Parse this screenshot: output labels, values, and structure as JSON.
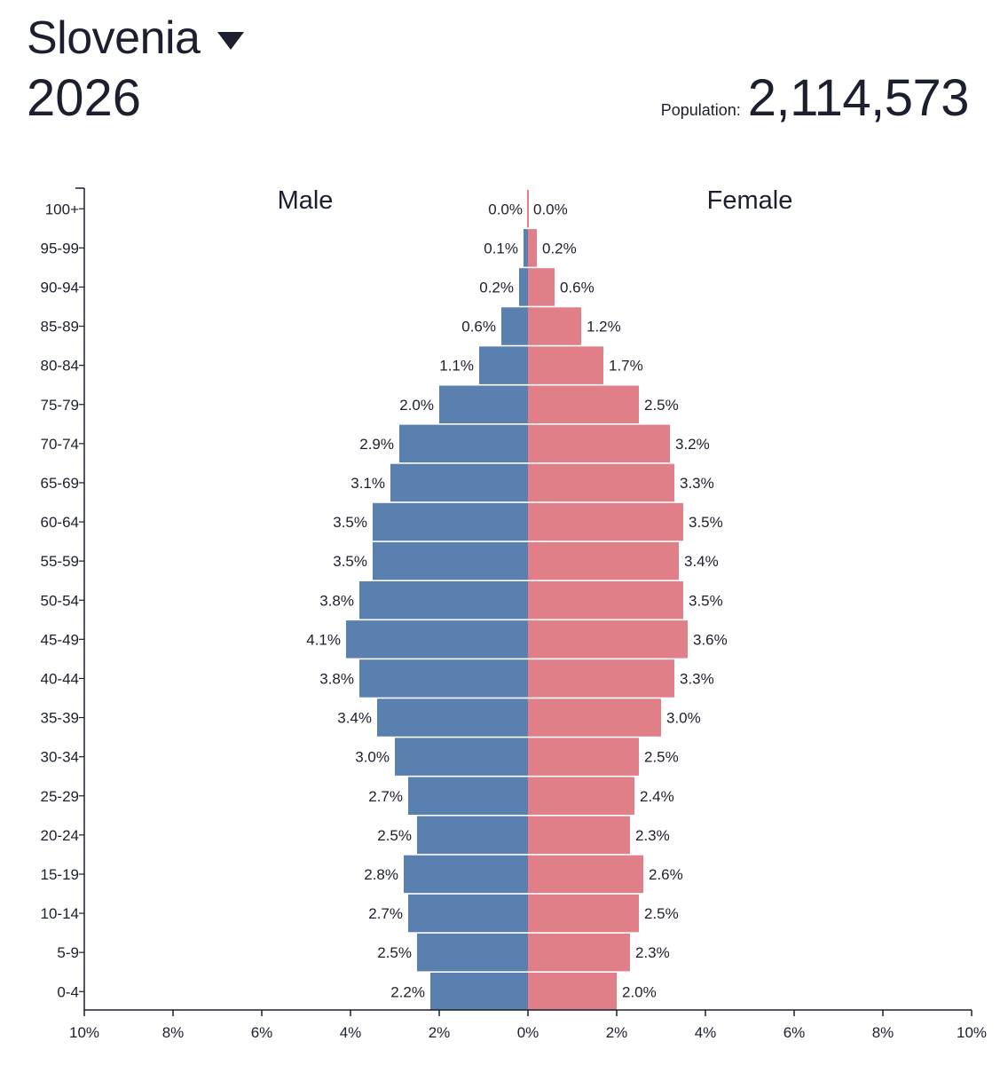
{
  "header": {
    "country": "Slovenia",
    "year": "2026",
    "population_label": "Population:",
    "population_value": "2,114,573"
  },
  "colors": {
    "male": "#5a80b0",
    "female": "#e07f88",
    "text": "#1b1f2e"
  },
  "chart_data": {
    "type": "bar",
    "orientation": "horizontal",
    "categories": [
      "100+",
      "95-99",
      "90-94",
      "85-89",
      "80-84",
      "75-79",
      "70-74",
      "65-69",
      "60-64",
      "55-59",
      "50-54",
      "45-49",
      "40-44",
      "35-39",
      "30-34",
      "25-29",
      "20-24",
      "15-19",
      "10-14",
      "5-9",
      "0-4"
    ],
    "series": [
      {
        "name": "Male",
        "values": [
          0.0,
          0.1,
          0.2,
          0.6,
          1.1,
          2.0,
          2.9,
          3.1,
          3.5,
          3.5,
          3.8,
          4.1,
          3.8,
          3.4,
          3.0,
          2.7,
          2.5,
          2.8,
          2.7,
          2.5,
          2.2
        ],
        "labels": [
          "0.0%",
          "0.1%",
          "0.2%",
          "0.6%",
          "1.1%",
          "2.0%",
          "2.9%",
          "3.1%",
          "3.5%",
          "3.5%",
          "3.8%",
          "4.1%",
          "3.8%",
          "3.4%",
          "3.0%",
          "2.7%",
          "2.5%",
          "2.8%",
          "2.7%",
          "2.5%",
          "2.2%"
        ]
      },
      {
        "name": "Female",
        "values": [
          0.0,
          0.2,
          0.6,
          1.2,
          1.7,
          2.5,
          3.2,
          3.3,
          3.5,
          3.4,
          3.5,
          3.6,
          3.3,
          3.0,
          2.5,
          2.4,
          2.3,
          2.6,
          2.5,
          2.3,
          2.0
        ],
        "labels": [
          "0.0%",
          "0.2%",
          "0.6%",
          "1.2%",
          "1.7%",
          "2.5%",
          "3.2%",
          "3.3%",
          "3.5%",
          "3.4%",
          "3.5%",
          "3.6%",
          "3.3%",
          "3.0%",
          "2.5%",
          "2.4%",
          "2.3%",
          "2.6%",
          "2.5%",
          "2.3%",
          "2.0%"
        ]
      }
    ],
    "x_ticks": [
      "10%",
      "8%",
      "6%",
      "4%",
      "2%",
      "0%",
      "2%",
      "4%",
      "6%",
      "8%",
      "10%"
    ],
    "xlim": [
      -10,
      10
    ],
    "grid": false
  }
}
